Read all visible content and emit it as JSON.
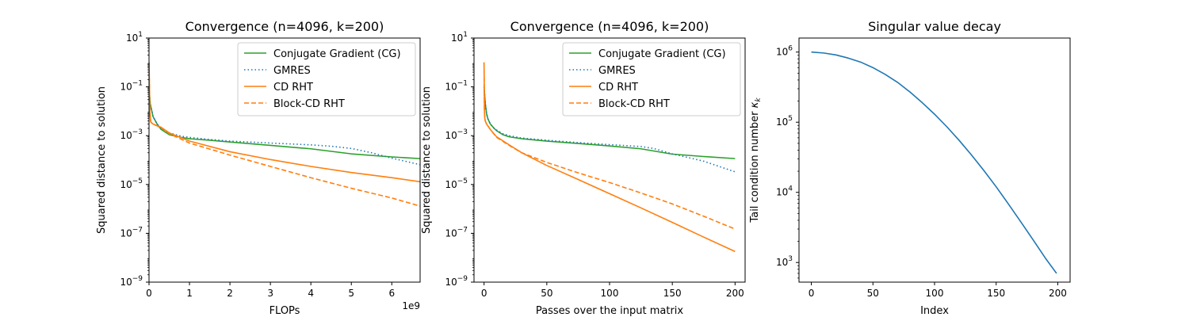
{
  "colors": {
    "cg": "#2ca02c",
    "gmres": "#1f77b4",
    "cd": "#ff7f0e",
    "sv": "#1f77b4"
  },
  "chart_data": [
    {
      "type": "line",
      "title": "Convergence (n=4096, k=200)",
      "xlabel": "FLOPs",
      "ylabel": "Squared distance to solution",
      "xlim": [
        0,
        6.7
      ],
      "ylim_exp": [
        -9,
        1
      ],
      "yscale": "log",
      "x_multiplier_label": "1e9",
      "xticks": [
        0,
        1,
        2,
        3,
        4,
        5,
        6
      ],
      "xtick_labels": [
        "0",
        "1",
        "2",
        "3",
        "4",
        "5",
        "6"
      ],
      "ytick_exps": [
        -9,
        -7,
        -5,
        -3,
        -1,
        1
      ],
      "legend_position": "upper-right",
      "series": [
        {
          "name": "Conjugate Gradient (CG)",
          "color": "#2ca02c",
          "style": "solid",
          "x": [
            0,
            0.03,
            0.1,
            0.2,
            0.3,
            0.5,
            0.8,
            1.0,
            1.5,
            2.0,
            3.0,
            4.0,
            5.0,
            6.0,
            6.7
          ],
          "y": [
            0.1,
            0.02,
            0.006,
            0.003,
            0.0018,
            0.0011,
            0.00085,
            0.00075,
            0.00065,
            0.00055,
            0.0004,
            0.00029,
            0.00018,
            0.000135,
            0.000115
          ]
        },
        {
          "name": "GMRES",
          "color": "#1f77b4",
          "style": "dotted",
          "x": [
            0,
            0.03,
            0.1,
            0.2,
            0.3,
            0.5,
            0.8,
            1.0,
            1.5,
            2.0,
            3.0,
            4.0,
            4.5,
            5.0,
            5.5,
            6.0,
            6.7
          ],
          "y": [
            0.1,
            0.02,
            0.006,
            0.003,
            0.002,
            0.0013,
            0.00095,
            0.00085,
            0.0007,
            0.0006,
            0.0005,
            0.00042,
            0.00037,
            0.0003,
            0.0002,
            0.00012,
            6.5e-05
          ]
        },
        {
          "name": "CD RHT",
          "color": "#ff7f0e",
          "style": "solid",
          "x": [
            0,
            0.02,
            0.04,
            0.05,
            0.1,
            0.3,
            0.5,
            1.0,
            2.0,
            3.0,
            4.0,
            5.0,
            6.0,
            6.7
          ],
          "y": [
            1.0,
            0.01,
            0.004,
            0.0035,
            0.003,
            0.0022,
            0.0013,
            0.0006,
            0.00022,
            0.000105,
            5.5e-05,
            3.1e-05,
            1.9e-05,
            1.3e-05
          ]
        },
        {
          "name": "Block-CD RHT",
          "color": "#ff7f0e",
          "style": "dashed",
          "x": [
            0,
            0.02,
            0.04,
            0.05,
            0.1,
            0.3,
            0.5,
            1.0,
            2.0,
            3.0,
            4.0,
            5.0,
            6.0,
            6.7
          ],
          "y": [
            1.0,
            0.01,
            0.004,
            0.0035,
            0.003,
            0.0021,
            0.0012,
            0.0005,
            0.00016,
            5.5e-05,
            1.9e-05,
            7e-06,
            2.8e-06,
            1.3e-06
          ]
        }
      ]
    },
    {
      "type": "line",
      "title": "Convergence (n=4096, k=200)",
      "xlabel": "Passes over the input matrix",
      "ylabel": "Squared distance to solution",
      "xlim": [
        -8,
        208
      ],
      "ylim_exp": [
        -9,
        1
      ],
      "yscale": "log",
      "xticks": [
        0,
        50,
        100,
        150,
        200
      ],
      "xtick_labels": [
        "0",
        "50",
        "100",
        "150",
        "200"
      ],
      "ytick_exps": [
        -9,
        -7,
        -5,
        -3,
        -1,
        1
      ],
      "legend_position": "upper-right",
      "series": [
        {
          "name": "Conjugate Gradient (CG)",
          "color": "#2ca02c",
          "style": "solid",
          "x": [
            0,
            1,
            2,
            3,
            5,
            8,
            10,
            15,
            20,
            30,
            50,
            75,
            100,
            125,
            150,
            175,
            200
          ],
          "y": [
            0.1,
            0.02,
            0.008,
            0.005,
            0.003,
            0.002,
            0.0016,
            0.0011,
            0.0009,
            0.00075,
            0.0006,
            0.00048,
            0.00038,
            0.00029,
            0.000175,
            0.00014,
            0.000115
          ]
        },
        {
          "name": "GMRES",
          "color": "#1f77b4",
          "style": "dotted",
          "x": [
            0,
            1,
            2,
            3,
            5,
            8,
            10,
            15,
            20,
            30,
            50,
            75,
            100,
            125,
            135,
            150,
            175,
            200
          ],
          "y": [
            0.1,
            0.02,
            0.008,
            0.005,
            0.003,
            0.002,
            0.0017,
            0.0012,
            0.001,
            0.0008,
            0.00065,
            0.00052,
            0.00043,
            0.00036,
            0.0003,
            0.00018,
            9e-05,
            3.3e-05
          ]
        },
        {
          "name": "CD RHT",
          "color": "#ff7f0e",
          "style": "solid",
          "x": [
            0,
            0.3,
            0.6,
            1,
            2,
            5,
            10,
            20,
            30,
            50,
            75,
            100,
            125,
            150,
            175,
            200
          ],
          "y": [
            1.0,
            0.01,
            0.005,
            0.004,
            0.003,
            0.0018,
            0.0009,
            0.00042,
            0.0002,
            6e-05,
            1.6e-05,
            4.2e-06,
            1.1e-06,
            2.8e-07,
            7e-08,
            1.8e-08
          ]
        },
        {
          "name": "Block-CD RHT",
          "color": "#ff7f0e",
          "style": "dashed",
          "x": [
            0,
            0.3,
            0.6,
            1,
            2,
            5,
            10,
            20,
            30,
            50,
            75,
            100,
            125,
            150,
            175,
            200
          ],
          "y": [
            1.0,
            0.01,
            0.005,
            0.004,
            0.003,
            0.0018,
            0.00085,
            0.0004,
            0.0002,
            8e-05,
            3e-05,
            1.2e-05,
            4.5e-06,
            1.6e-06,
            5e-07,
            1.5e-07
          ]
        }
      ]
    },
    {
      "type": "line",
      "title": "Singular value decay",
      "xlabel": "Index",
      "ylabel": "Tail condition number",
      "ylabel_symbol": "κ",
      "ylabel_subscript": "k",
      "xlim": [
        -10,
        210
      ],
      "ylim_exp": [
        2.72,
        6.2
      ],
      "yscale": "log",
      "xticks": [
        0,
        50,
        100,
        150,
        200
      ],
      "xtick_labels": [
        "0",
        "50",
        "100",
        "150",
        "200"
      ],
      "ytick_exps": [
        3,
        4,
        5,
        6
      ],
      "series": [
        {
          "color": "#1f77b4",
          "style": "solid",
          "x": [
            0,
            10,
            20,
            30,
            40,
            50,
            60,
            70,
            80,
            90,
            100,
            110,
            120,
            130,
            140,
            150,
            160,
            170,
            180,
            190,
            199
          ],
          "y": [
            1000000.0,
            970000.0,
            910000.0,
            820000.0,
            720000.0,
            600000.0,
            480000.0,
            370000.0,
            270000.0,
            190000.0,
            130000.0,
            86000.0,
            55000.0,
            34000.0,
            20500.0,
            12000.0,
            6800.0,
            3800.0,
            2100.0,
            1150.0,
            700.0
          ]
        }
      ]
    }
  ]
}
